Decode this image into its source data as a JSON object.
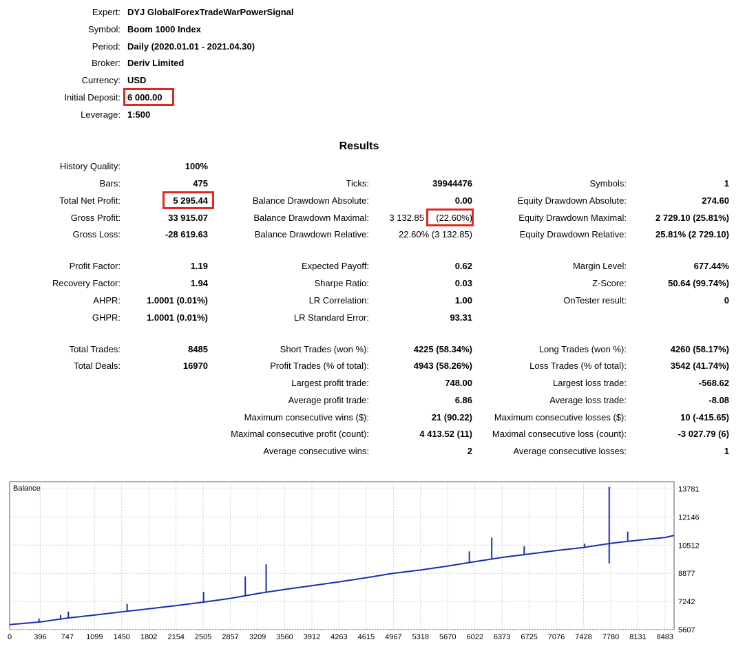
{
  "header": {
    "rows": [
      {
        "label": "Expert:",
        "value": "DYJ GlobalForexTradeWarPowerSignal"
      },
      {
        "label": "Symbol:",
        "value": "Boom 1000 Index"
      },
      {
        "label": "Period:",
        "value": "Daily (2020.01.01 - 2021.04.30)"
      },
      {
        "label": "Broker:",
        "value": "Deriv Limited"
      },
      {
        "label": "Currency:",
        "value": "USD"
      },
      {
        "label": "Initial Deposit:",
        "value": "6 000.00"
      },
      {
        "label": "Leverage:",
        "value": "1:500"
      }
    ]
  },
  "results": {
    "title": "Results",
    "col1": [
      {
        "label": "History Quality:",
        "value": "100%"
      },
      {
        "label": "Bars:",
        "value": "475"
      },
      {
        "label": "Total Net Profit:",
        "value": "5 295.44"
      },
      {
        "label": "Gross Profit:",
        "value": "33 915.07"
      },
      {
        "label": "Gross Loss:",
        "value": "-28 619.63"
      },
      {
        "label": "Profit Factor:",
        "value": "1.19"
      },
      {
        "label": "Recovery Factor:",
        "value": "1.94"
      },
      {
        "label": "AHPR:",
        "value": "1.0001 (0.01%)"
      },
      {
        "label": "GHPR:",
        "value": "1.0001 (0.01%)"
      },
      {
        "label": "Total Trades:",
        "value": "8485"
      },
      {
        "label": "Total Deals:",
        "value": "16970"
      }
    ],
    "col2": [
      {
        "label": "Ticks:",
        "value": "39944476"
      },
      {
        "label": "Balance Drawdown Absolute:",
        "value": "0.00"
      },
      {
        "label": "Balance Drawdown Maximal:",
        "value": "3 132.85",
        "value2": "(22.60%)"
      },
      {
        "label": "Balance Drawdown Relative:",
        "value": "22.60% (3 132.85)"
      },
      {
        "label": "Expected Payoff:",
        "value": "0.62"
      },
      {
        "label": "Sharpe Ratio:",
        "value": "0.03"
      },
      {
        "label": "LR Correlation:",
        "value": "1.00"
      },
      {
        "label": "LR Standard Error:",
        "value": "93.31"
      },
      {
        "label": "Short Trades (won %):",
        "value": "4225 (58.34%)"
      },
      {
        "label": "Profit Trades (% of total):",
        "value": "4943 (58.26%)"
      },
      {
        "label": "Largest profit trade:",
        "value": "748.00"
      },
      {
        "label": "Average profit trade:",
        "value": "6.86"
      },
      {
        "label": "Maximum consecutive wins ($):",
        "value": "21 (90.22)"
      },
      {
        "label": "Maximal consecutive profit (count):",
        "value": "4 413.52 (11)"
      },
      {
        "label": "Average consecutive wins:",
        "value": "2"
      }
    ],
    "col3": [
      {
        "label": "Symbols:",
        "value": "1"
      },
      {
        "label": "Equity Drawdown Absolute:",
        "value": "274.60"
      },
      {
        "label": "Equity Drawdown Maximal:",
        "value": "2 729.10 (25.81%)"
      },
      {
        "label": "Equity Drawdown Relative:",
        "value": "25.81% (2 729.10)"
      },
      {
        "label": "Margin Level:",
        "value": "677.44%"
      },
      {
        "label": "Z-Score:",
        "value": "50.64 (99.74%)"
      },
      {
        "label": "OnTester result:",
        "value": "0"
      },
      {
        "label": "Long Trades (won %):",
        "value": "4260 (58.17%)"
      },
      {
        "label": "Loss Trades (% of total):",
        "value": "3542 (41.74%)"
      },
      {
        "label": "Largest loss trade:",
        "value": "-568.62"
      },
      {
        "label": "Average loss trade:",
        "value": "-8.08"
      },
      {
        "label": "Maximum consecutive losses ($):",
        "value": "10 (-415.65)"
      },
      {
        "label": "Maximal consecutive loss (count):",
        "value": "-3 027.79 (6)"
      },
      {
        "label": "Average consecutive losses:",
        "value": "1"
      }
    ]
  },
  "colors": {
    "highlight": "#e0281e",
    "balance_line": "#1a2fb0",
    "grid": "#d0d0d0"
  },
  "chart_data": {
    "type": "line",
    "title": "Balance",
    "xlim": [
      0,
      8600
    ],
    "ylim": [
      5607,
      14200
    ],
    "x_ticks": [
      0,
      396,
      747,
      1099,
      1450,
      1802,
      2154,
      2505,
      2857,
      3209,
      3560,
      3912,
      4263,
      4615,
      4967,
      5318,
      5670,
      6022,
      6373,
      6725,
      7076,
      7428,
      7780,
      8131,
      8483
    ],
    "y_ticks": [
      5607,
      7242,
      8877,
      10512,
      12146,
      13781
    ],
    "series": [
      {
        "values_x": [
          0,
          396,
          747,
          1099,
          1450,
          1802,
          2154,
          2505,
          2857,
          3209,
          3560,
          3912,
          4263,
          4615,
          4967,
          5318,
          5670,
          6022,
          6373,
          6725,
          7076,
          7428,
          7780,
          8131,
          8483,
          8600
        ],
        "values_y": [
          5900,
          6050,
          6280,
          6450,
          6640,
          6820,
          7000,
          7200,
          7420,
          7700,
          7940,
          8160,
          8380,
          8620,
          8880,
          9070,
          9300,
          9550,
          9800,
          10000,
          10200,
          10380,
          10620,
          10800,
          10960,
          11080
        ]
      }
    ],
    "spikes": [
      {
        "x": 380,
        "y": 6250
      },
      {
        "x": 660,
        "y": 6450
      },
      {
        "x": 760,
        "y": 6650
      },
      {
        "x": 1520,
        "y": 7100
      },
      {
        "x": 2510,
        "y": 7800
      },
      {
        "x": 3050,
        "y": 8700
      },
      {
        "x": 3320,
        "y": 9400
      },
      {
        "x": 4750,
        "y": 8700
      },
      {
        "x": 5950,
        "y": 10150
      },
      {
        "x": 6240,
        "y": 10950
      },
      {
        "x": 6660,
        "y": 10450
      },
      {
        "x": 7440,
        "y": 10600
      },
      {
        "x": 7760,
        "y": 13900
      },
      {
        "x": 7760,
        "y": 9450
      },
      {
        "x": 8000,
        "y": 11300
      }
    ]
  }
}
